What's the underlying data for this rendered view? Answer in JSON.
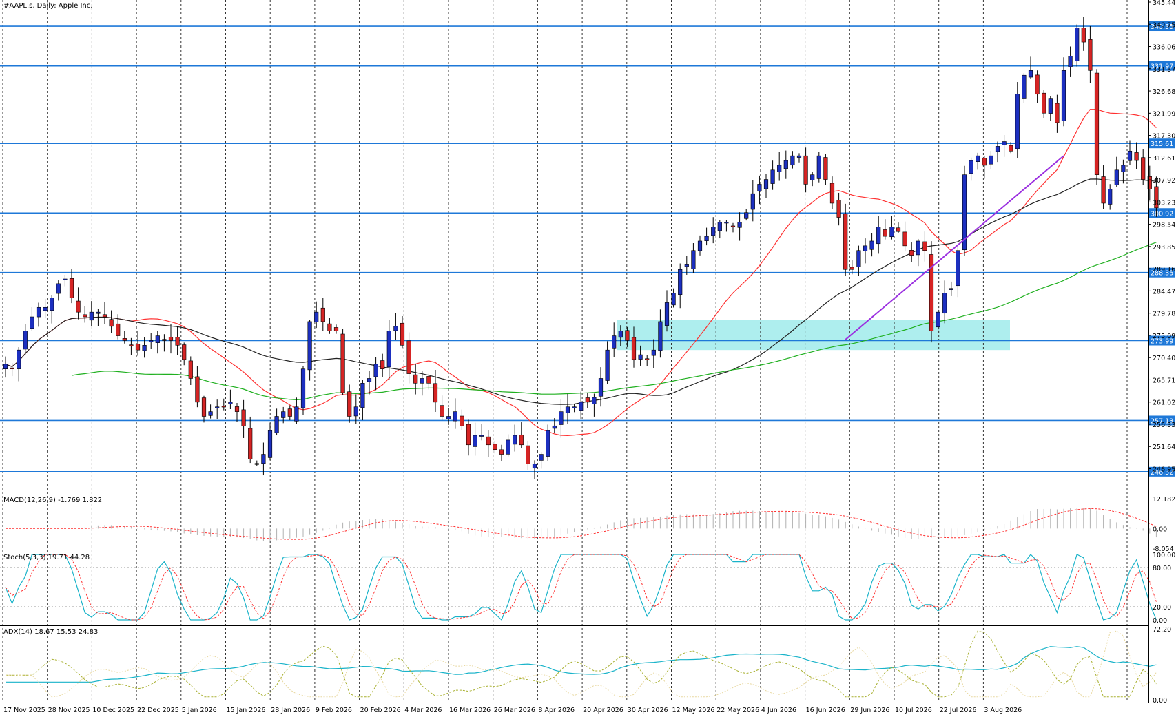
{
  "header": {
    "symbol_label": "#AAPL.s, Daily:  Apple Inc."
  },
  "colors": {
    "bull": "#1c2fc0",
    "bear": "#d62424",
    "grid": "#333333",
    "hline": "#1e78d8",
    "ma_fast": "#ff3030",
    "ma_mid": "#222222",
    "ma_slow": "#20b020",
    "trend": "#9b30e0",
    "zone": "#aeeeee",
    "stoch_k": "#19b3c9",
    "stoch_d": "#ff3030",
    "adx": "#19b3c9",
    "plus_di": "#a8b030",
    "minus_di": "#e8d8a0",
    "macd_hist": "#b0b0b0",
    "macd_signal": "#ff3030"
  },
  "chart_data": {
    "type": "candlestick",
    "title": "#AAPL.s, Daily:  Apple Inc.",
    "ylim": [
      241.5,
      345.44
    ],
    "price_ticks": [
      "345.44",
      "340.75",
      "336.06",
      "331.37",
      "326.68",
      "321.99",
      "317.30",
      "312.61",
      "307.92",
      "303.23",
      "298.54",
      "293.85",
      "289.16",
      "284.47",
      "279.78",
      "275.09",
      "270.40",
      "265.71",
      "261.02",
      "256.33",
      "251.64",
      "246.95"
    ],
    "x_labels": [
      "17 Nov 2025",
      "28 Nov 2025",
      "10 Dec 2025",
      "22 Dec 2025",
      "5 Jan 2026",
      "15 Jan 2026",
      "28 Jan 2026",
      "9 Feb 2026",
      "20 Feb 2026",
      "4 Mar 2026",
      "16 Mar 2026",
      "26 Mar 2026",
      "8 Apr 2026",
      "20 Apr 2026",
      "30 Apr 2026",
      "12 May 2026",
      "22 May 2026",
      "4 Jun 2026",
      "16 Jun 2026",
      "29 Jun 2026",
      "10 Jul 2026",
      "22 Jul 2026",
      "3 Aug 2026"
    ],
    "horizontal_levels": [
      {
        "value": 340.35,
        "label": "340.35"
      },
      {
        "value": 331.97,
        "label": "331.97"
      },
      {
        "value": 315.61,
        "label": "315.61"
      },
      {
        "value": 300.92,
        "label": "300.92"
      },
      {
        "value": 288.35,
        "label": "288.35"
      },
      {
        "value": 273.99,
        "label": "273.99"
      },
      {
        "value": 257.13,
        "label": "257.13"
      },
      {
        "value": 246.32,
        "label": "246.32"
      }
    ],
    "support_zone": {
      "low": 272.0,
      "high": 278.3
    },
    "trendline": {
      "from": [
        127,
        274.2
      ],
      "to": [
        160,
        313.0
      ]
    },
    "closes": [
      269,
      268,
      272,
      276,
      279,
      281,
      281,
      283,
      286,
      287,
      283,
      280,
      279,
      280,
      280,
      279,
      277,
      275,
      274,
      273,
      272,
      273,
      274,
      275,
      274,
      274,
      273,
      270,
      266,
      261,
      258,
      259,
      260,
      260,
      261,
      259,
      256,
      249,
      248,
      250,
      255,
      258,
      259,
      258,
      260,
      268,
      278,
      280,
      278,
      276,
      276,
      263,
      258,
      260,
      265,
      266,
      269,
      268,
      276,
      277,
      273,
      267,
      265,
      266,
      265,
      261,
      258,
      258,
      259,
      256,
      252,
      254,
      254,
      252,
      251,
      250,
      253,
      254,
      252,
      248,
      248,
      250,
      255,
      256,
      259,
      260,
      260,
      261,
      261,
      262,
      266,
      272,
      275,
      276,
      274,
      270,
      271,
      270,
      272,
      278,
      282,
      284,
      289,
      290,
      293,
      295,
      296,
      298,
      299,
      299,
      298,
      299,
      301,
      305,
      307,
      308,
      310,
      311,
      312,
      313,
      313,
      307,
      309,
      313,
      308,
      303,
      300,
      289,
      289,
      293,
      294,
      295,
      298,
      296,
      298,
      297,
      294,
      292,
      295,
      293,
      276,
      280,
      284,
      285,
      293,
      309,
      312,
      313,
      311,
      313,
      315,
      316,
      314,
      326,
      330,
      331,
      326,
      322,
      325,
      320,
      331,
      334,
      340,
      337,
      331,
      309,
      303,
      306,
      310,
      311,
      314,
      312,
      308,
      306,
      302
    ]
  },
  "indicators": {
    "macd": {
      "label": "MACD(12,26,9) -1.769 1.822",
      "ticks": [
        "12.182",
        "0.00",
        "-8.054"
      ],
      "range": [
        -8.054,
        12.182
      ]
    },
    "stoch": {
      "label": "Stoch(5,3,3) 19.71 44.28",
      "ticks": [
        "100.00",
        "80.00",
        "20.00",
        "0.00"
      ],
      "range": [
        0,
        100
      ]
    },
    "adx": {
      "label": "ADX(14) 18.67 15.53 24.83",
      "ticks": [
        "72.20",
        "0.00"
      ],
      "range": [
        0,
        72.2
      ]
    }
  }
}
